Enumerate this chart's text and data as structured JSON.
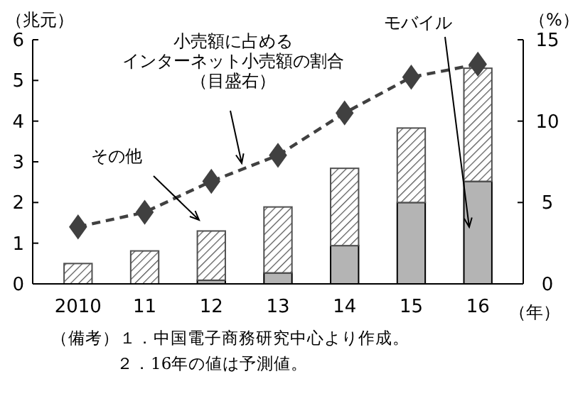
{
  "chart_data": {
    "type": "bar",
    "stacked": true,
    "categories": [
      "2010",
      "11",
      "12",
      "13",
      "14",
      "15",
      "16"
    ],
    "series": [
      {
        "name": "モバイル",
        "color": "#b4b4b4",
        "values": [
          0,
          0,
          0.09,
          0.27,
          0.94,
          2.0,
          2.52
        ]
      },
      {
        "name": "その他",
        "color": "#505050",
        "values": [
          0.5,
          0.81,
          1.21,
          1.62,
          1.9,
          1.83,
          2.78
        ]
      },
      {
        "name": "小売額に占めるインターネット小売額の割合（目盛右）",
        "type": "line",
        "axis": "y2",
        "color": "#404040",
        "marker": "diamond",
        "line_style": "dashed",
        "values": [
          3.5,
          4.4,
          6.3,
          7.9,
          10.5,
          12.7,
          13.5
        ]
      }
    ],
    "ylim": [
      0,
      6
    ],
    "yticks": [
      0,
      1,
      2,
      3,
      4,
      5,
      6
    ],
    "y2lim": [
      0,
      15
    ],
    "y2ticks": [
      0,
      5,
      10,
      15
    ],
    "ylabel": "（兆元）",
    "y2label": "（%）",
    "xlabel": "（年）",
    "legend": false,
    "grid": false,
    "annotations": [
      "（備考）１．中国電子商務研究中心より作成。",
      "２．16年の値は予測値。"
    ]
  }
}
